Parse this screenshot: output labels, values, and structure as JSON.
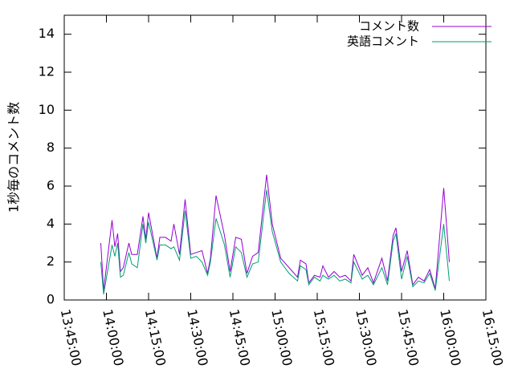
{
  "chart_data": {
    "type": "line",
    "y_label": "1秒毎のコメント数",
    "x": [
      "13:58:00",
      "13:59:00",
      "14:02:00",
      "14:03:00",
      "14:04:00",
      "14:05:00",
      "14:06:00",
      "14:08:00",
      "14:09:00",
      "14:11:00",
      "14:13:00",
      "14:14:00",
      "14:15:00",
      "14:18:00",
      "14:19:00",
      "14:21:00",
      "14:23:00",
      "14:24:00",
      "14:26:00",
      "14:28:00",
      "14:30:00",
      "14:32:00",
      "14:34:00",
      "14:36:00",
      "14:37:00",
      "14:39:00",
      "14:42:00",
      "14:44:00",
      "14:46:00",
      "14:48:00",
      "14:50:00",
      "14:52:00",
      "14:54:00",
      "14:57:00",
      "14:59:00",
      "15:02:00",
      "15:05:00",
      "15:08:00",
      "15:09:00",
      "15:11:00",
      "15:12:00",
      "15:14:00",
      "15:16:00",
      "15:17:00",
      "15:19:00",
      "15:21:00",
      "15:23:00",
      "15:25:00",
      "15:27:00",
      "15:28:00",
      "15:31:00",
      "15:33:00",
      "15:35:00",
      "15:38:00",
      "15:40:00",
      "15:42:00",
      "15:43:00",
      "15:45:00",
      "15:47:00",
      "15:49:00",
      "15:51:00",
      "15:53:00",
      "15:55:00",
      "15:57:00",
      "16:00:00",
      "16:02:00"
    ],
    "series": [
      {
        "name": "コメント数",
        "color": "#9400d3",
        "values": [
          3.0,
          0.5,
          4.2,
          2.8,
          3.5,
          1.5,
          1.7,
          3.0,
          2.4,
          2.4,
          4.4,
          3.2,
          4.6,
          2.2,
          3.3,
          3.3,
          3.1,
          4.0,
          2.4,
          5.3,
          2.4,
          2.5,
          2.6,
          1.4,
          2.2,
          5.5,
          3.4,
          1.5,
          3.3,
          3.2,
          1.4,
          2.3,
          2.5,
          6.6,
          4.0,
          2.2,
          1.7,
          1.2,
          2.1,
          1.9,
          0.9,
          1.3,
          1.2,
          1.8,
          1.2,
          1.5,
          1.2,
          1.3,
          1.0,
          2.4,
          1.3,
          1.7,
          0.9,
          2.2,
          1.0,
          3.4,
          3.8,
          1.5,
          2.6,
          0.8,
          1.2,
          1.0,
          1.6,
          0.6,
          5.9,
          2.0
        ]
      },
      {
        "name": "英語コメント",
        "color": "#009e73",
        "values": [
          2.0,
          0.3,
          2.9,
          2.3,
          3.0,
          1.2,
          1.3,
          2.5,
          1.9,
          1.7,
          4.0,
          3.0,
          4.1,
          2.1,
          2.9,
          2.9,
          2.7,
          2.8,
          2.1,
          4.7,
          2.2,
          2.3,
          2.0,
          1.3,
          2.0,
          4.3,
          2.9,
          1.2,
          2.8,
          2.5,
          1.2,
          1.9,
          2.0,
          5.8,
          3.6,
          2.0,
          1.4,
          1.0,
          1.8,
          1.6,
          0.8,
          1.2,
          1.0,
          1.3,
          1.1,
          1.3,
          1.0,
          1.1,
          0.9,
          2.0,
          1.1,
          1.3,
          0.8,
          1.7,
          0.8,
          3.1,
          3.5,
          1.1,
          2.3,
          0.7,
          1.0,
          0.9,
          1.4,
          0.5,
          4.0,
          1.0
        ]
      }
    ],
    "xlim": [
      "13:45:00",
      "16:15:00"
    ],
    "xticks": [
      "13:45:00",
      "14:00:00",
      "14:15:00",
      "14:30:00",
      "14:45:00",
      "15:00:00",
      "15:15:00",
      "15:30:00",
      "15:45:00",
      "16:00:00",
      "16:15:00"
    ],
    "ylim": [
      0,
      15
    ],
    "yticks": [
      0,
      2,
      4,
      6,
      8,
      10,
      12,
      14
    ],
    "legend": "top-right"
  }
}
